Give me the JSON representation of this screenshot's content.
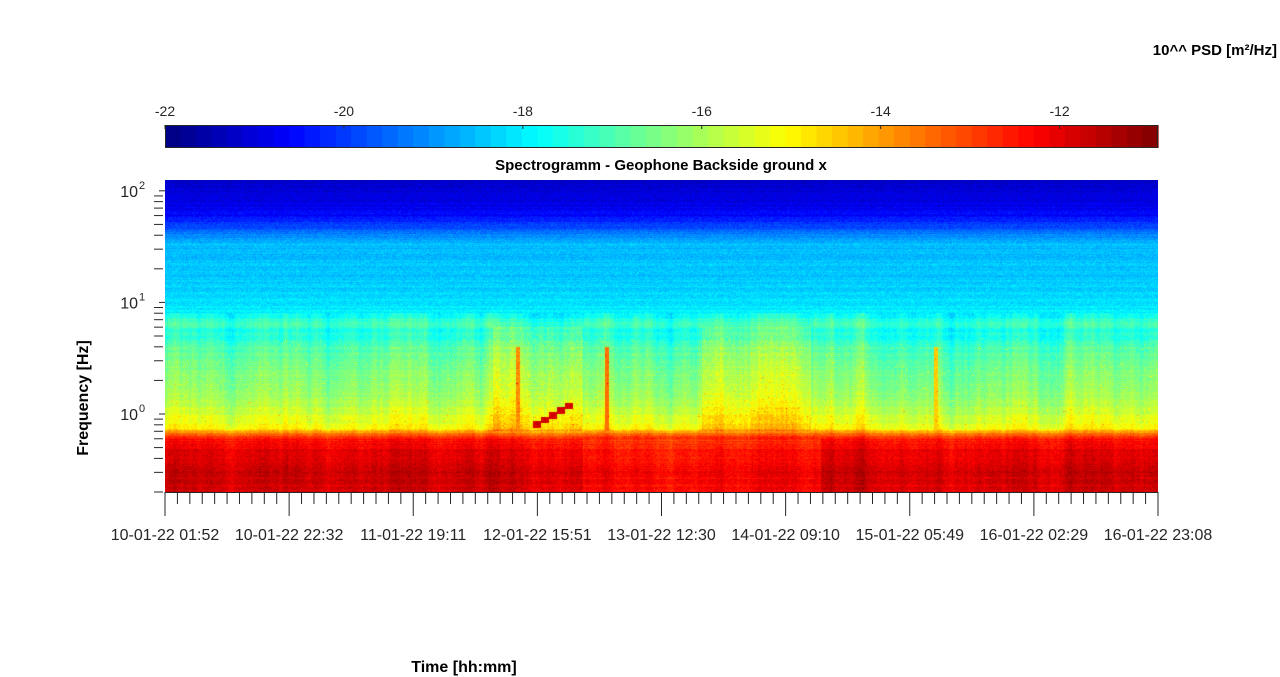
{
  "chart_data": {
    "type": "heatmap",
    "title": "Spectrogramm - Geophone Backside ground x",
    "xlabel": "Time [hh:mm]",
    "ylabel": "Frequency [Hz]",
    "colorbar": {
      "label": "10^^ PSD [m²/Hz]",
      "ticks": [
        "-22",
        "-20",
        "-18",
        "-16",
        "-14",
        "-12"
      ],
      "tick_values": [
        -22,
        -20,
        -18,
        -16,
        -14,
        -12
      ],
      "range": [
        -22.0,
        -10.9
      ],
      "colormap": "jet",
      "location": "top"
    },
    "x_ticks": [
      "10-01-22 01:52",
      "10-01-22 22:32",
      "11-01-22 19:11",
      "12-01-22 15:51",
      "13-01-22 12:30",
      "14-01-22 09:10",
      "15-01-22 05:49",
      "16-01-22 02:29",
      "16-01-22 23:08"
    ],
    "y_ticks": [
      {
        "base": "10",
        "exp": "2"
      },
      {
        "base": "10",
        "exp": "1"
      },
      {
        "base": "10",
        "exp": "0"
      }
    ],
    "y_scale": "log",
    "ylim_hz": [
      0.2,
      125
    ],
    "grid": false,
    "profile": {
      "note_values_are_log10_psd": true,
      "freq_hz": [
        0.2,
        0.3,
        0.45,
        0.6,
        0.75,
        1.0,
        1.5,
        2.5,
        4.0,
        5.5,
        6.5,
        8.0,
        12,
        20,
        35,
        45,
        60,
        90,
        125
      ],
      "log10_psd": [
        -11.9,
        -11.7,
        -12.0,
        -12.4,
        -15.0,
        -15.6,
        -16.2,
        -16.5,
        -17.0,
        -17.6,
        -17.0,
        -18.0,
        -18.3,
        -18.5,
        -18.6,
        -19.6,
        -20.6,
        -21.0,
        -21.2
      ]
    },
    "features": [
      {
        "kind": "broadband_burst",
        "time_fraction": 0.355,
        "log10_psd": -14.5
      },
      {
        "kind": "broadband_burst",
        "time_fraction": 0.445,
        "log10_psd": -13.5
      },
      {
        "kind": "broadband_burst",
        "time_fraction": 0.776,
        "log10_psd": -14.5
      },
      {
        "kind": "step_tone",
        "time_fraction_start": 0.37,
        "time_fraction_end": 0.41,
        "freq_start_hz": 0.8,
        "freq_end_hz": 1.18,
        "log10_psd": -12.5
      },
      {
        "kind": "energetic_period",
        "time_fraction_start": 0.33,
        "time_fraction_end": 0.42,
        "log10_psd_delta": 1.0
      },
      {
        "kind": "energetic_period",
        "time_fraction_start": 0.54,
        "time_fraction_end": 0.65,
        "log10_psd_delta": 0.8
      },
      {
        "kind": "quiet_low_band",
        "time_fraction_start": 0.42,
        "time_fraction_end": 0.66,
        "log10_psd_delta": -0.5
      }
    ]
  }
}
